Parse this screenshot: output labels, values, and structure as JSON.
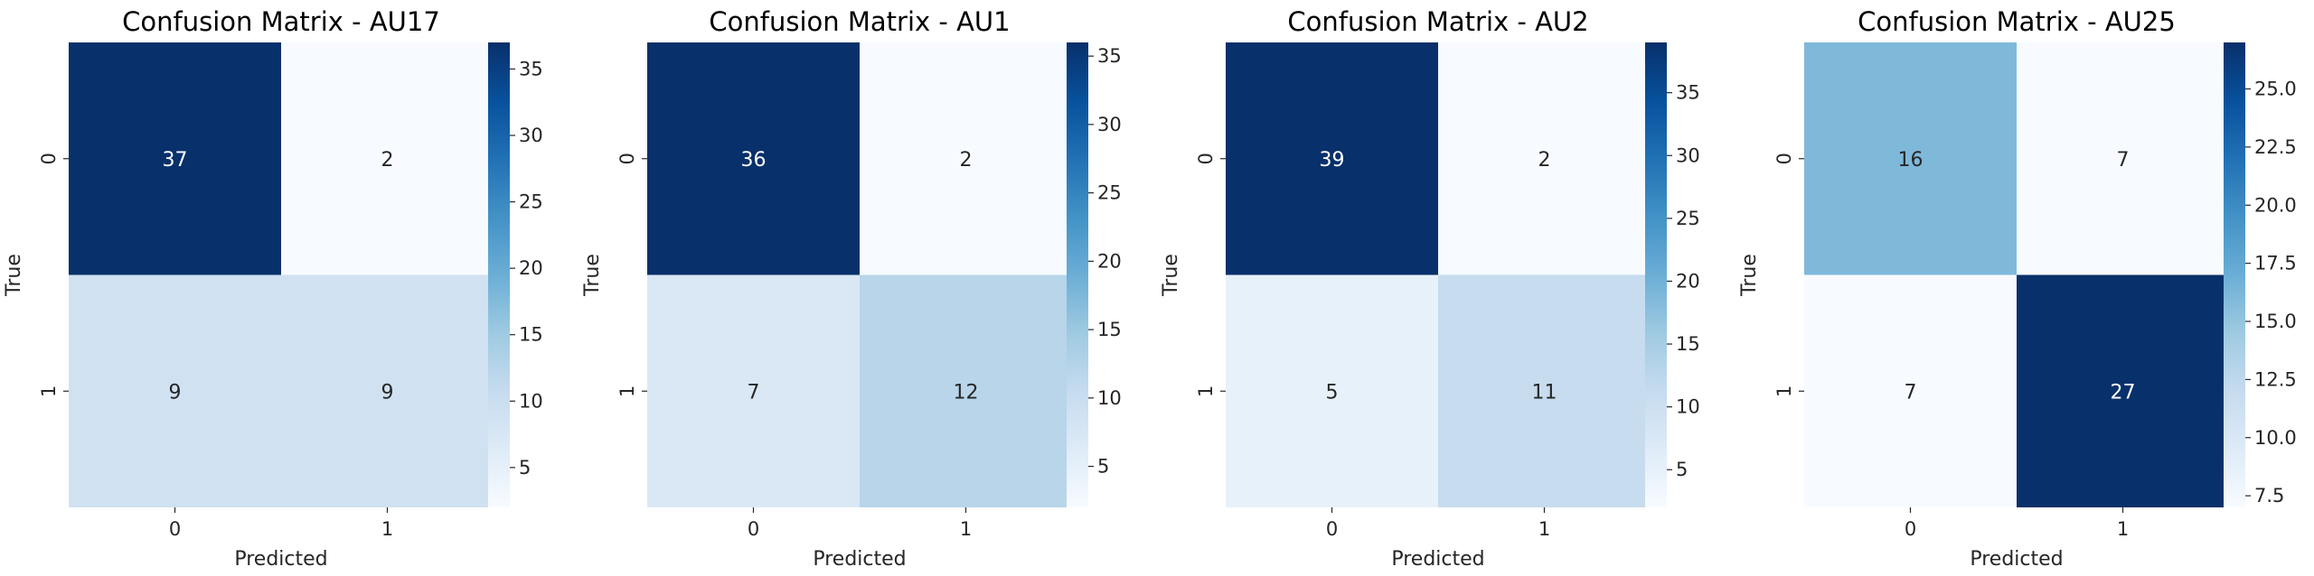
{
  "colormap": [
    "#f7fbff",
    "#deebf7",
    "#c6dbef",
    "#9ecae1",
    "#6baed6",
    "#4292c6",
    "#2171b5",
    "#08519c",
    "#08306b"
  ],
  "chart_data": [
    {
      "type": "heatmap",
      "title": "Confusion Matrix - AU17",
      "xlabel": "Predicted",
      "ylabel": "True",
      "x_categories": [
        "0",
        "1"
      ],
      "y_categories": [
        "0",
        "1"
      ],
      "values": [
        [
          37,
          2
        ],
        [
          9,
          9
        ]
      ],
      "colorbar": {
        "range": [
          2,
          37
        ],
        "ticks": [
          5,
          10,
          15,
          20,
          25,
          30,
          35
        ]
      }
    },
    {
      "type": "heatmap",
      "title": "Confusion Matrix - AU1",
      "xlabel": "Predicted",
      "ylabel": "True",
      "x_categories": [
        "0",
        "1"
      ],
      "y_categories": [
        "0",
        "1"
      ],
      "values": [
        [
          36,
          2
        ],
        [
          7,
          12
        ]
      ],
      "colorbar": {
        "range": [
          2,
          36
        ],
        "ticks": [
          5,
          10,
          15,
          20,
          25,
          30,
          35
        ]
      }
    },
    {
      "type": "heatmap",
      "title": "Confusion Matrix - AU2",
      "xlabel": "Predicted",
      "ylabel": "True",
      "x_categories": [
        "0",
        "1"
      ],
      "y_categories": [
        "0",
        "1"
      ],
      "values": [
        [
          39,
          2
        ],
        [
          5,
          11
        ]
      ],
      "colorbar": {
        "range": [
          2,
          39
        ],
        "ticks": [
          5,
          10,
          15,
          20,
          25,
          30,
          35
        ]
      }
    },
    {
      "type": "heatmap",
      "title": "Confusion Matrix - AU25",
      "xlabel": "Predicted",
      "ylabel": "True",
      "x_categories": [
        "0",
        "1"
      ],
      "y_categories": [
        "0",
        "1"
      ],
      "values": [
        [
          16,
          7
        ],
        [
          7,
          27
        ]
      ],
      "colorbar": {
        "range": [
          7,
          27
        ],
        "ticks": [
          7.5,
          10.0,
          12.5,
          15.0,
          17.5,
          20.0,
          22.5,
          25.0
        ]
      }
    }
  ]
}
